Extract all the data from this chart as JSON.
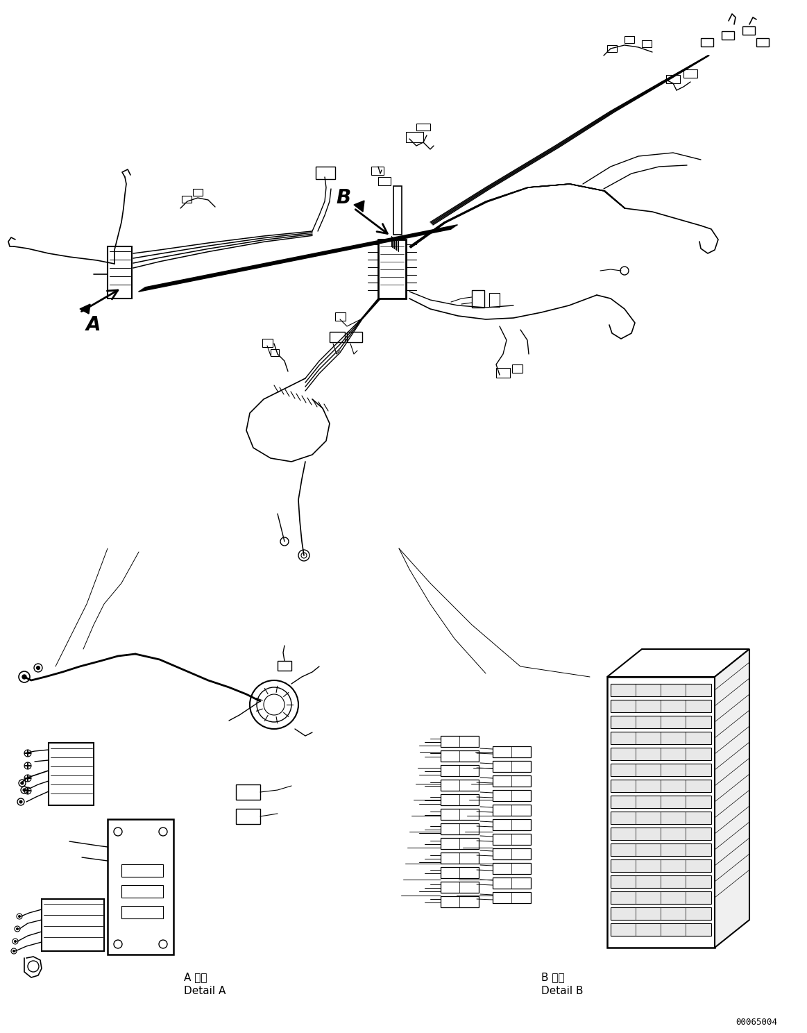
{
  "background_color": "#ffffff",
  "line_color": "#000000",
  "fig_width": 11.63,
  "fig_height": 14.88,
  "dpi": 100,
  "label_A": "A",
  "label_B": "B",
  "detail_a_jp": "A 詳細",
  "detail_a_en": "Detail A",
  "detail_b_jp": "B 詳細",
  "detail_b_en": "Detail B",
  "part_number": "00065004"
}
